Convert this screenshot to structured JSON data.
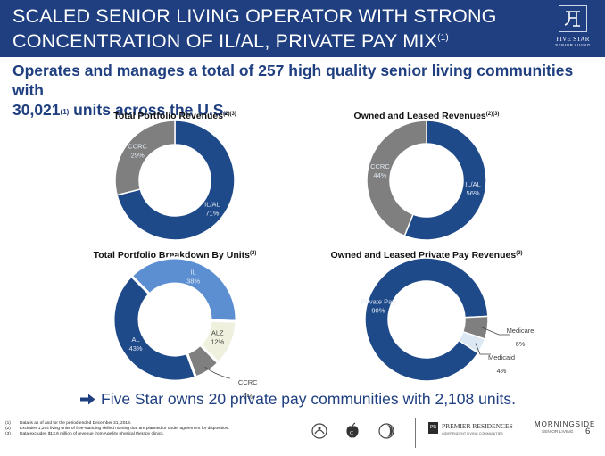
{
  "header": {
    "title_line1": "SCALED SENIOR LIVING OPERATOR WITH STRONG",
    "title_line2": "CONCENTRATION OF IL/AL, PRIVATE PAY MIX",
    "title_footnote": "(1)",
    "logo_brand": "FIVE STAR",
    "logo_sub": "SENIOR LIVING"
  },
  "subtitle": {
    "part1": "Operates and manages a total of 257 high quality senior living communities with",
    "part2a": "30,021",
    "footnote": "(1)",
    "part2b": " units across the U.S."
  },
  "colors": {
    "header_bg": "#1f3f80",
    "dark_blue": "#1f4a8a",
    "gray": "#7f7f7f",
    "light_blue": "#5b8fd1",
    "cream": "#eff1de",
    "pale_blue": "#dde8f5",
    "slice_label_light": "#dfe7f2",
    "slice_label_dark": "#404040"
  },
  "chart_data": [
    {
      "type": "pie",
      "variant": "donut",
      "title": "Total Portfolio Revenues",
      "title_footnote": "(2)(3)",
      "series": [
        {
          "name": "IL/AL",
          "value": 71,
          "label": "71%",
          "color": "#1f4a8a"
        },
        {
          "name": "CCRC",
          "value": 29,
          "label": "29%",
          "color": "#7f7f7f"
        }
      ]
    },
    {
      "type": "pie",
      "variant": "donut",
      "title": "Owned and Leased Revenues",
      "title_footnote": "(2)(3)",
      "series": [
        {
          "name": "IL/AL",
          "value": 56,
          "label": "56%",
          "color": "#1f4a8a"
        },
        {
          "name": "CCRC",
          "value": 44,
          "label": "44%",
          "color": "#7f7f7f"
        }
      ]
    },
    {
      "type": "pie",
      "variant": "donut",
      "title": "Total Portfolio Breakdown By Units",
      "title_footnote": "(2)",
      "series": [
        {
          "name": "IL",
          "value": 38,
          "label": "38%",
          "color": "#5b8fd1"
        },
        {
          "name": "ALZ",
          "value": 12,
          "label": "12%",
          "color": "#eff1de"
        },
        {
          "name": "CCRC",
          "value": 7,
          "label": "7%",
          "color": "#7f7f7f"
        },
        {
          "name": "AL",
          "value": 43,
          "label": "43%",
          "color": "#1f4a8a"
        }
      ]
    },
    {
      "type": "pie",
      "variant": "donut",
      "title": "Owned and Leased Private Pay Revenues",
      "title_footnote": "(2)",
      "series": [
        {
          "name": "Private Pay",
          "value": 90,
          "label": "90%",
          "color": "#1f4a8a"
        },
        {
          "name": "Medicare",
          "value": 6,
          "label": "6%",
          "color": "#7f7f7f"
        },
        {
          "name": "Medicaid",
          "value": 4,
          "label": "4%",
          "color": "#dde8f5"
        }
      ]
    }
  ],
  "callout": "Five Star owns 20 private pay communities with 2,108 units.",
  "footnotes": [
    {
      "num": "(1)",
      "text": "Data is as of and for the period ended December 31, 2019."
    },
    {
      "num": "(2)",
      "text": "Excludes 1,264 living units of free-standing skilled nursing that are planned or under agreement for disposition."
    },
    {
      "num": "(3)",
      "text": "Data excludes $13.6 million of revenue from Ageility physical therapy clinics."
    }
  ],
  "brands": {
    "premier_badge": "PR",
    "premier_name": "PREMIER RESIDENCES",
    "premier_sub": "INDEPENDENT LIVING COMMUNITIES",
    "morningside_name": "MORNINGSIDE",
    "morningside_sub": "SENIOR LIVING"
  },
  "page_number": "6"
}
